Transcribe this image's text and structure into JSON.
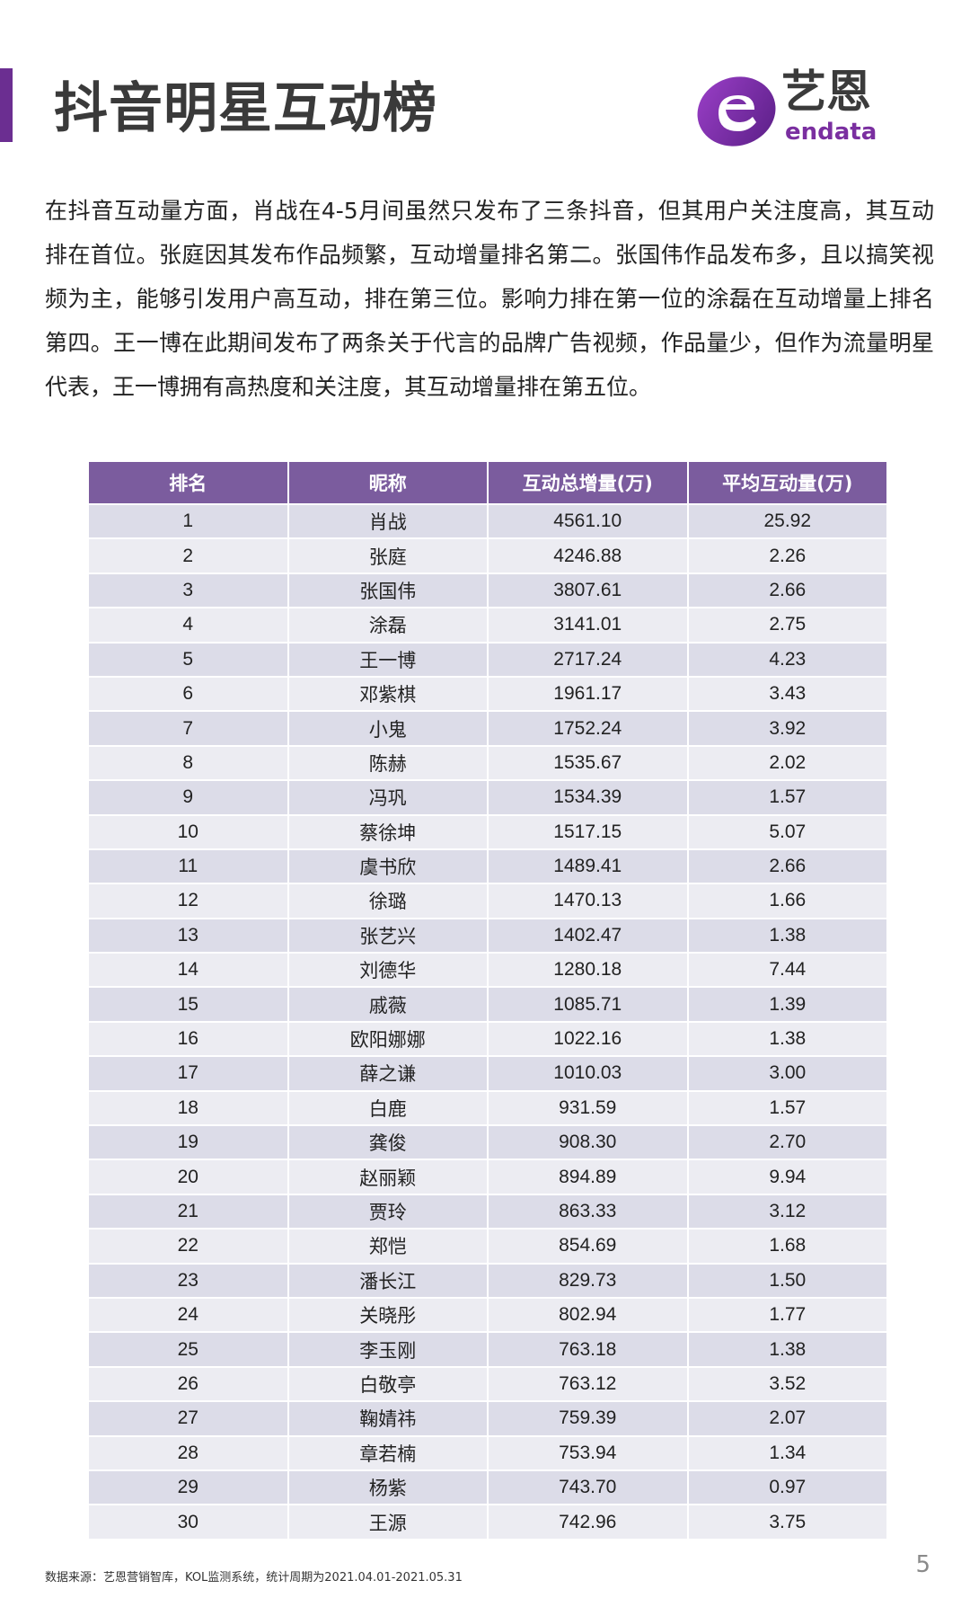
{
  "header": {
    "title": "抖音明星互动榜",
    "logo_cn": "艺恩",
    "logo_en": "endata"
  },
  "intro": "在抖音互动量方面，肖战在4-5月间虽然只发布了三条抖音，但其用户关注度高，其互动排在首位。张庭因其发布作品频繁，互动增量排名第二。张国伟作品发布多，且以搞笑视频为主，能够引发用户高互动，排在第三位。影响力排在第一位的涂磊在互动增量上排名第四。王一博在此期间发布了两条关于代言的品牌广告视频，作品量少，但作为流量明星代表，王一博拥有高热度和关注度，其互动增量排在第五位。",
  "table": {
    "headers": [
      "排名",
      "昵称",
      "互动总增量(万)",
      "平均互动量(万)"
    ],
    "rows": [
      [
        "1",
        "肖战",
        "4561.10",
        "25.92"
      ],
      [
        "2",
        "张庭",
        "4246.88",
        "2.26"
      ],
      [
        "3",
        "张国伟",
        "3807.61",
        "2.66"
      ],
      [
        "4",
        "涂磊",
        "3141.01",
        "2.75"
      ],
      [
        "5",
        "王一博",
        "2717.24",
        "4.23"
      ],
      [
        "6",
        "邓紫棋",
        "1961.17",
        "3.43"
      ],
      [
        "7",
        "小鬼",
        "1752.24",
        "3.92"
      ],
      [
        "8",
        "陈赫",
        "1535.67",
        "2.02"
      ],
      [
        "9",
        "冯巩",
        "1534.39",
        "1.57"
      ],
      [
        "10",
        "蔡徐坤",
        "1517.15",
        "5.07"
      ],
      [
        "11",
        "虞书欣",
        "1489.41",
        "2.66"
      ],
      [
        "12",
        "徐璐",
        "1470.13",
        "1.66"
      ],
      [
        "13",
        "张艺兴",
        "1402.47",
        "1.38"
      ],
      [
        "14",
        "刘德华",
        "1280.18",
        "7.44"
      ],
      [
        "15",
        "戚薇",
        "1085.71",
        "1.39"
      ],
      [
        "16",
        "欧阳娜娜",
        "1022.16",
        "1.38"
      ],
      [
        "17",
        "薛之谦",
        "1010.03",
        "3.00"
      ],
      [
        "18",
        "白鹿",
        "931.59",
        "1.57"
      ],
      [
        "19",
        "龚俊",
        "908.30",
        "2.70"
      ],
      [
        "20",
        "赵丽颖",
        "894.89",
        "9.94"
      ],
      [
        "21",
        "贾玲",
        "863.33",
        "3.12"
      ],
      [
        "22",
        "郑恺",
        "854.69",
        "1.68"
      ],
      [
        "23",
        "潘长江",
        "829.73",
        "1.50"
      ],
      [
        "24",
        "关晓彤",
        "802.94",
        "1.77"
      ],
      [
        "25",
        "李玉刚",
        "763.18",
        "1.38"
      ],
      [
        "26",
        "白敬亭",
        "763.12",
        "3.52"
      ],
      [
        "27",
        "鞠婧祎",
        "759.39",
        "2.07"
      ],
      [
        "28",
        "章若楠",
        "753.94",
        "1.34"
      ],
      [
        "29",
        "杨紫",
        "743.70",
        "0.97"
      ],
      [
        "30",
        "王源",
        "742.96",
        "3.75"
      ]
    ]
  },
  "footer": {
    "source": "数据来源：艺恩营销智库，KOL监测系统，统计周期为2021.04.01-2021.05.31",
    "page_number": "5"
  },
  "colors": {
    "accent": "#6b2e91",
    "header_bg": "#7b5c9e",
    "row_odd": "#dcdce8",
    "row_even": "#ececf2"
  }
}
